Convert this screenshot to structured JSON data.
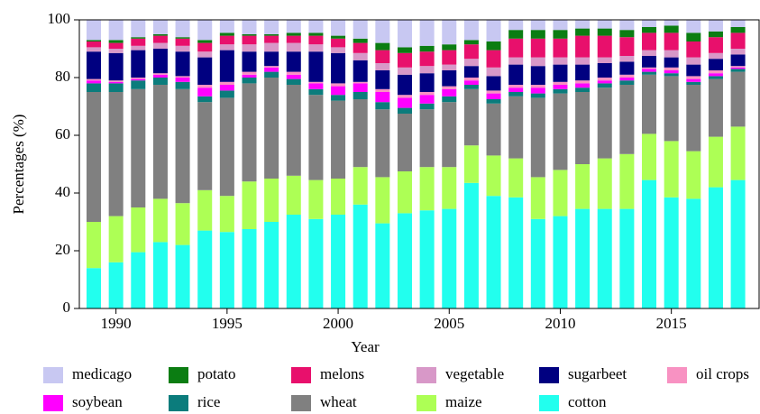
{
  "chart_data": {
    "type": "stacked_bar",
    "xlabel": "Year",
    "ylabel": "Percentages (%)",
    "x": [
      1989,
      1990,
      1991,
      1992,
      1993,
      1994,
      1995,
      1996,
      1997,
      1998,
      1999,
      2000,
      2001,
      2002,
      2003,
      2004,
      2005,
      2006,
      2007,
      2008,
      2009,
      2010,
      2011,
      2012,
      2013,
      2014,
      2015,
      2016,
      2017,
      2018
    ],
    "xlim": [
      1988.35,
      2018.95
    ],
    "xticks": [
      1990,
      1995,
      2000,
      2005,
      2010,
      2015
    ],
    "ylim": [
      0,
      100
    ],
    "yticks": [
      0,
      20,
      40,
      60,
      80,
      100
    ],
    "series": [
      {
        "name": "medicago",
        "color": "#c8c8f2",
        "values": [
          7,
          7,
          6,
          5,
          6,
          7,
          4.5,
          5,
          5,
          4.5,
          4.5,
          5.5,
          6.5,
          8,
          9.5,
          9,
          8.5,
          7,
          7.5,
          3.5,
          3.5,
          3.5,
          3,
          3,
          3.5,
          2.5,
          2,
          4.5,
          4,
          2.5
        ]
      },
      {
        "name": "potato",
        "color": "#0b7d12",
        "values": [
          0.5,
          1,
          0.5,
          0.5,
          0.5,
          1,
          1,
          0.5,
          0.5,
          1,
          1,
          1,
          1.5,
          2.5,
          2,
          2,
          2,
          1.5,
          3,
          3,
          3,
          3,
          2.5,
          2.5,
          2.5,
          2,
          2.5,
          3,
          2,
          2
        ]
      },
      {
        "name": "melons",
        "color": "#e8106c",
        "values": [
          2,
          2,
          2.5,
          2.5,
          2.5,
          3,
          3,
          3,
          2.5,
          2.5,
          3,
          3,
          3.5,
          4.5,
          5,
          5,
          5,
          5,
          6,
          6.5,
          6.5,
          6.5,
          7.5,
          7.5,
          6.5,
          6,
          6,
          5.5,
          5.5,
          5.5
        ]
      },
      {
        "name": "vegetable",
        "color": "#d898c8",
        "values": [
          1.5,
          1.5,
          1.5,
          2,
          2,
          2,
          2,
          2.5,
          3,
          3,
          2.5,
          2,
          2.5,
          2.5,
          2.5,
          2.5,
          2,
          2.5,
          3,
          2.5,
          3,
          2.5,
          2.5,
          2,
          2,
          2,
          2.5,
          2.5,
          2,
          2
        ]
      },
      {
        "name": "sugarbeet",
        "color": "#000080",
        "values": [
          9.5,
          9.5,
          9.5,
          8.5,
          8.5,
          9.5,
          11,
          7,
          5,
          7,
          10.5,
          10.5,
          7.5,
          6.5,
          7,
          6.5,
          5.5,
          4,
          5,
          7,
          6.5,
          6,
          5.5,
          5,
          4.5,
          4,
          3.5,
          4,
          4,
          4
        ]
      },
      {
        "name": "oil crops",
        "color": "#f892c2",
        "values": [
          0.5,
          0.5,
          0.5,
          0.5,
          0.5,
          1,
          1,
          1,
          0.5,
          1,
          0.5,
          1,
          0.5,
          1,
          1,
          1,
          1,
          1,
          1,
          1,
          1,
          1,
          1,
          1,
          1,
          0.5,
          1,
          1,
          1,
          0.5
        ]
      },
      {
        "name": "soybean",
        "color": "#ff00ff",
        "values": [
          1,
          0.5,
          0.5,
          1,
          1.5,
          3,
          2,
          1,
          1.5,
          1.5,
          2,
          3,
          3,
          3.5,
          3.5,
          3,
          2.5,
          1.5,
          2,
          1.5,
          2,
          1.5,
          1.5,
          1,
          1,
          1,
          1,
          1,
          1,
          0.5
        ]
      },
      {
        "name": "rice",
        "color": "#0b7c7c",
        "values": [
          3,
          3,
          3,
          2.5,
          2.5,
          2,
          2.5,
          2,
          2,
          2,
          2,
          2,
          2.5,
          2.5,
          2,
          2,
          2,
          1.5,
          1.5,
          1.5,
          1.5,
          1.5,
          1.5,
          1.5,
          1.5,
          1,
          1,
          1,
          1,
          1
        ]
      },
      {
        "name": "wheat",
        "color": "#808080",
        "values": [
          45,
          43,
          41,
          39.5,
          39.5,
          30.5,
          34,
          34,
          35,
          31.5,
          29.5,
          27,
          23.5,
          23.5,
          20,
          20,
          22.5,
          19.5,
          18,
          21.5,
          27.5,
          26.5,
          25,
          24.5,
          24,
          20.5,
          22.5,
          23,
          20,
          19
        ]
      },
      {
        "name": "maize",
        "color": "#adff55",
        "values": [
          16,
          16,
          15.5,
          15,
          14.5,
          14,
          12.5,
          16.5,
          15,
          13.5,
          13.5,
          12.5,
          13,
          16,
          14.5,
          15,
          14.5,
          13,
          14,
          13.5,
          14.5,
          16,
          15.5,
          17.5,
          19,
          16,
          19.5,
          16.5,
          17.5,
          18.5
        ]
      },
      {
        "name": "cotton",
        "color": "#22ffee",
        "values": [
          14,
          16,
          19.5,
          23,
          22,
          27,
          26.5,
          27.5,
          30,
          32.5,
          31,
          32.5,
          36,
          29.5,
          33,
          34,
          34.5,
          43.5,
          39,
          38.5,
          31,
          32,
          34.5,
          34.5,
          34.5,
          44.5,
          38.5,
          38,
          42,
          44.5
        ]
      }
    ]
  }
}
